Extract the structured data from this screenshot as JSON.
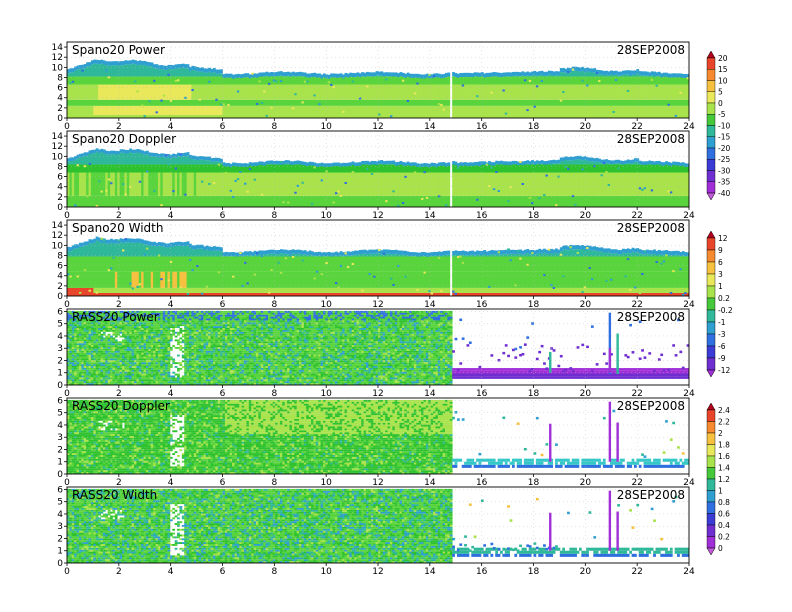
{
  "chart_data": {
    "type": "heatmap",
    "date": "28SEP2008",
    "x_ticks": [
      0,
      2,
      4,
      6,
      8,
      10,
      12,
      14,
      16,
      18,
      20,
      22,
      24
    ],
    "xlim": [
      0,
      24
    ],
    "panels": [
      {
        "title": "Spano20 Power",
        "date": "28SEP2008",
        "ylim": [
          0,
          15
        ],
        "y_ticks": [
          0,
          2,
          4,
          6,
          8,
          10,
          12,
          14
        ],
        "kind": "spano",
        "field": "power"
      },
      {
        "title": "Spano20 Doppler",
        "date": "28SEP2008",
        "ylim": [
          0,
          15
        ],
        "y_ticks": [
          0,
          2,
          4,
          6,
          8,
          10,
          12,
          14
        ],
        "kind": "spano",
        "field": "doppler"
      },
      {
        "title": "Spano20 Width",
        "date": "28SEP2008",
        "ylim": [
          0,
          15
        ],
        "y_ticks": [
          0,
          2,
          4,
          6,
          8,
          10,
          12,
          14
        ],
        "kind": "spano",
        "field": "width"
      },
      {
        "title": "RASS20 Power",
        "date": "28SEP2008",
        "ylim": [
          0,
          6.2
        ],
        "y_ticks": [
          0,
          1,
          2,
          3,
          4,
          5,
          6
        ],
        "kind": "rass",
        "field": "power"
      },
      {
        "title": "RASS20 Doppler",
        "date": "28SEP2008",
        "ylim": [
          0,
          6.2
        ],
        "y_ticks": [
          0,
          1,
          2,
          3,
          4,
          5,
          6
        ],
        "kind": "rass",
        "field": "doppler"
      },
      {
        "title": "RASS20 Width",
        "date": "28SEP2008",
        "ylim": [
          0,
          6.2
        ],
        "y_ticks": [
          0,
          1,
          2,
          3,
          4,
          5,
          6
        ],
        "kind": "rass",
        "field": "width"
      }
    ],
    "colorbars": [
      {
        "labels": [
          "20",
          "15",
          "10",
          "5",
          "0",
          "-5",
          "-10",
          "-15",
          "-20",
          "-25",
          "-30",
          "-35",
          "-40"
        ],
        "colors": [
          "#b4001e",
          "#e8452a",
          "#f58a2e",
          "#f5c13e",
          "#e8e85a",
          "#a9e34b",
          "#45c83a",
          "#2fb89a",
          "#2e9fd0",
          "#2f6fe0",
          "#3b3bd6",
          "#6f2fd0",
          "#a12fd8",
          "#c05ad8"
        ]
      },
      {
        "labels": [
          "12",
          "9",
          "6",
          "3",
          "1",
          "0.2",
          "-0.2",
          "-1",
          "-3",
          "-6",
          "-9",
          "-12"
        ],
        "colors": [
          "#b4001e",
          "#e8452a",
          "#f58a2e",
          "#f5c13e",
          "#e8e85a",
          "#a9e34b",
          "#45c83a",
          "#2fb89a",
          "#2e9fd0",
          "#2f6fe0",
          "#3b3bd6",
          "#6f2fd0",
          "#a12fd8"
        ]
      },
      {
        "labels": [
          "2.4",
          "2.2",
          "2",
          "1.8",
          "1.6",
          "1.4",
          "1.2",
          "1",
          "0.8",
          "0.6",
          "0.4",
          "0.2",
          "0"
        ],
        "colors": [
          "#b4001e",
          "#e8452a",
          "#f58a2e",
          "#f5c13e",
          "#e8e85a",
          "#a9e34b",
          "#45c83a",
          "#2fb89a",
          "#2e9fd0",
          "#2f6fe0",
          "#3b3bd6",
          "#6f2fd0",
          "#a12fd8",
          "#c05ad8"
        ]
      }
    ]
  }
}
